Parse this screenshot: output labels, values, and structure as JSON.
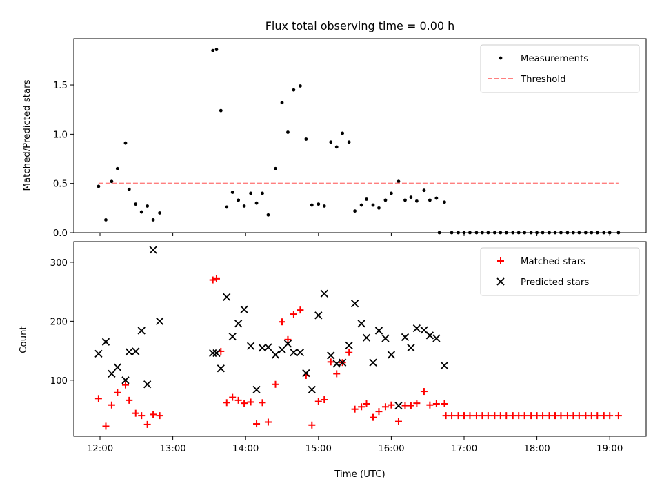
{
  "chart_data": [
    {
      "type": "scatter",
      "title": "Flux total observing time = 0.00 h",
      "xlabel": "",
      "ylabel": "Matched/Predicted stars",
      "x_tick_labels": [
        "12:00",
        "13:00",
        "14:00",
        "15:00",
        "16:00",
        "17:00",
        "18:00",
        "19:00"
      ],
      "x_ticks_hours": [
        12,
        13,
        14,
        15,
        16,
        17,
        18,
        19
      ],
      "xlim_hours": [
        11.64,
        19.5
      ],
      "ylim": [
        0,
        1.97
      ],
      "y_ticks": [
        0.0,
        0.5,
        1.0,
        1.5
      ],
      "y_tick_labels": [
        "0.0",
        "0.5",
        "1.0",
        "1.5"
      ],
      "legend_position": "top-right",
      "series": [
        {
          "name": "Measurements",
          "color": "#000000",
          "marker": "dot",
          "points": [
            [
              11.98,
              0.47
            ],
            [
              12.08,
              0.13
            ],
            [
              12.16,
              0.52
            ],
            [
              12.24,
              0.65
            ],
            [
              12.35,
              0.91
            ],
            [
              12.4,
              0.44
            ],
            [
              12.49,
              0.29
            ],
            [
              12.57,
              0.21
            ],
            [
              12.65,
              0.27
            ],
            [
              12.73,
              0.13
            ],
            [
              12.82,
              0.2
            ],
            [
              13.55,
              1.85
            ],
            [
              13.6,
              1.86
            ],
            [
              13.66,
              1.24
            ],
            [
              13.74,
              0.26
            ],
            [
              13.82,
              0.41
            ],
            [
              13.9,
              0.33
            ],
            [
              13.98,
              0.27
            ],
            [
              14.07,
              0.4
            ],
            [
              14.15,
              0.3
            ],
            [
              14.23,
              0.4
            ],
            [
              14.31,
              0.18
            ],
            [
              14.41,
              0.65
            ],
            [
              14.5,
              1.32
            ],
            [
              14.58,
              1.02
            ],
            [
              14.66,
              1.45
            ],
            [
              14.75,
              1.49
            ],
            [
              14.83,
              0.95
            ],
            [
              14.91,
              0.28
            ],
            [
              15.0,
              0.29
            ],
            [
              15.08,
              0.27
            ],
            [
              15.17,
              0.92
            ],
            [
              15.25,
              0.87
            ],
            [
              15.33,
              1.01
            ],
            [
              15.42,
              0.92
            ],
            [
              15.5,
              0.22
            ],
            [
              15.59,
              0.28
            ],
            [
              15.66,
              0.34
            ],
            [
              15.75,
              0.28
            ],
            [
              15.83,
              0.25
            ],
            [
              15.92,
              0.33
            ],
            [
              16.0,
              0.4
            ],
            [
              16.1,
              0.52
            ],
            [
              16.19,
              0.33
            ],
            [
              16.27,
              0.36
            ],
            [
              16.35,
              0.32
            ],
            [
              16.45,
              0.43
            ],
            [
              16.53,
              0.33
            ],
            [
              16.62,
              0.35
            ],
            [
              16.73,
              0.31
            ],
            [
              16.66,
              0.0
            ],
            [
              16.83,
              0.0
            ],
            [
              16.92,
              0.0
            ],
            [
              17.0,
              0.0
            ],
            [
              17.08,
              0.0
            ],
            [
              17.17,
              0.0
            ],
            [
              17.25,
              0.0
            ],
            [
              17.33,
              0.0
            ],
            [
              17.42,
              0.0
            ],
            [
              17.5,
              0.0
            ],
            [
              17.58,
              0.0
            ],
            [
              17.67,
              0.0
            ],
            [
              17.75,
              0.0
            ],
            [
              17.83,
              0.0
            ],
            [
              17.92,
              0.0
            ],
            [
              18.0,
              0.0
            ],
            [
              18.08,
              0.0
            ],
            [
              18.17,
              0.0
            ],
            [
              18.25,
              0.0
            ],
            [
              18.33,
              0.0
            ],
            [
              18.42,
              0.0
            ],
            [
              18.5,
              0.0
            ],
            [
              18.58,
              0.0
            ],
            [
              18.67,
              0.0
            ],
            [
              18.75,
              0.0
            ],
            [
              18.83,
              0.0
            ],
            [
              18.92,
              0.0
            ],
            [
              19.0,
              0.0
            ],
            [
              19.12,
              0.0
            ]
          ]
        },
        {
          "name": "Threshold",
          "color": "#ff7f7f",
          "line_style": "dashed",
          "points": [
            [
              11.98,
              0.5
            ],
            [
              19.12,
              0.5
            ]
          ]
        }
      ]
    },
    {
      "type": "scatter",
      "title": "",
      "xlabel": "Time (UTC)",
      "ylabel": "Count",
      "x_tick_labels": [
        "12:00",
        "13:00",
        "14:00",
        "15:00",
        "16:00",
        "17:00",
        "18:00",
        "19:00"
      ],
      "x_ticks_hours": [
        12,
        13,
        14,
        15,
        16,
        17,
        18,
        19
      ],
      "xlim_hours": [
        11.64,
        19.5
      ],
      "ylim": [
        5,
        335
      ],
      "y_ticks": [
        100,
        200,
        300
      ],
      "y_tick_labels": [
        "100",
        "200",
        "300"
      ],
      "legend_position": "top-right",
      "series": [
        {
          "name": "Matched stars",
          "color": "#ff0000",
          "marker": "plus",
          "points": [
            [
              11.98,
              69
            ],
            [
              12.08,
              22
            ],
            [
              12.16,
              58
            ],
            [
              12.24,
              79
            ],
            [
              12.35,
              92
            ],
            [
              12.4,
              66
            ],
            [
              12.49,
              44
            ],
            [
              12.57,
              40
            ],
            [
              12.65,
              25
            ],
            [
              12.73,
              42
            ],
            [
              12.82,
              40
            ],
            [
              13.55,
              270
            ],
            [
              13.6,
              272
            ],
            [
              13.66,
              149
            ],
            [
              13.74,
              62
            ],
            [
              13.82,
              71
            ],
            [
              13.9,
              66
            ],
            [
              13.98,
              61
            ],
            [
              14.07,
              63
            ],
            [
              14.15,
              26
            ],
            [
              14.23,
              62
            ],
            [
              14.31,
              29
            ],
            [
              14.41,
              93
            ],
            [
              14.5,
              199
            ],
            [
              14.58,
              169
            ],
            [
              14.66,
              212
            ],
            [
              14.75,
              219
            ],
            [
              14.83,
              108
            ],
            [
              14.91,
              24
            ],
            [
              15.0,
              64
            ],
            [
              15.08,
              67
            ],
            [
              15.17,
              131
            ],
            [
              15.25,
              111
            ],
            [
              15.33,
              130
            ],
            [
              15.42,
              147
            ],
            [
              15.5,
              51
            ],
            [
              15.59,
              55
            ],
            [
              15.66,
              60
            ],
            [
              15.75,
              37
            ],
            [
              15.83,
              47
            ],
            [
              15.92,
              55
            ],
            [
              16.0,
              58
            ],
            [
              16.1,
              30
            ],
            [
              16.19,
              57
            ],
            [
              16.27,
              57
            ],
            [
              16.35,
              61
            ],
            [
              16.45,
              81
            ],
            [
              16.53,
              58
            ],
            [
              16.62,
              60
            ],
            [
              16.73,
              60
            ],
            [
              16.75,
              40
            ],
            [
              16.83,
              40
            ],
            [
              16.92,
              40
            ],
            [
              17.0,
              40
            ],
            [
              17.08,
              40
            ],
            [
              17.17,
              40
            ],
            [
              17.25,
              40
            ],
            [
              17.33,
              40
            ],
            [
              17.42,
              40
            ],
            [
              17.5,
              40
            ],
            [
              17.58,
              40
            ],
            [
              17.67,
              40
            ],
            [
              17.75,
              40
            ],
            [
              17.83,
              40
            ],
            [
              17.92,
              40
            ],
            [
              18.0,
              40
            ],
            [
              18.08,
              40
            ],
            [
              18.17,
              40
            ],
            [
              18.25,
              40
            ],
            [
              18.33,
              40
            ],
            [
              18.42,
              40
            ],
            [
              18.5,
              40
            ],
            [
              18.58,
              40
            ],
            [
              18.67,
              40
            ],
            [
              18.75,
              40
            ],
            [
              18.83,
              40
            ],
            [
              18.92,
              40
            ],
            [
              19.0,
              40
            ],
            [
              19.12,
              40
            ]
          ]
        },
        {
          "name": "Predicted stars",
          "color": "#000000",
          "marker": "x",
          "points": [
            [
              11.98,
              145
            ],
            [
              12.08,
              165
            ],
            [
              12.16,
              111
            ],
            [
              12.24,
              122
            ],
            [
              12.35,
              100
            ],
            [
              12.4,
              148
            ],
            [
              12.49,
              149
            ],
            [
              12.57,
              184
            ],
            [
              12.65,
              93
            ],
            [
              12.73,
              321
            ],
            [
              12.82,
              200
            ],
            [
              13.55,
              146
            ],
            [
              13.6,
              146
            ],
            [
              13.66,
              120
            ],
            [
              13.74,
              241
            ],
            [
              13.82,
              174
            ],
            [
              13.9,
              196
            ],
            [
              13.98,
              220
            ],
            [
              14.07,
              158
            ],
            [
              14.15,
              84
            ],
            [
              14.23,
              155
            ],
            [
              14.31,
              156
            ],
            [
              14.41,
              143
            ],
            [
              14.5,
              152
            ],
            [
              14.58,
              162
            ],
            [
              14.66,
              147
            ],
            [
              14.75,
              147
            ],
            [
              14.83,
              112
            ],
            [
              14.91,
              84
            ],
            [
              15.0,
              210
            ],
            [
              15.08,
              247
            ],
            [
              15.17,
              142
            ],
            [
              15.25,
              128
            ],
            [
              15.33,
              130
            ],
            [
              15.42,
              159
            ],
            [
              15.5,
              230
            ],
            [
              15.59,
              196
            ],
            [
              15.66,
              172
            ],
            [
              15.75,
              130
            ],
            [
              15.83,
              184
            ],
            [
              15.92,
              171
            ],
            [
              16.0,
              143
            ],
            [
              16.1,
              57
            ],
            [
              16.19,
              173
            ],
            [
              16.27,
              155
            ],
            [
              16.35,
              188
            ],
            [
              16.45,
              185
            ],
            [
              16.53,
              176
            ],
            [
              16.62,
              171
            ],
            [
              16.73,
              125
            ]
          ]
        }
      ]
    }
  ]
}
